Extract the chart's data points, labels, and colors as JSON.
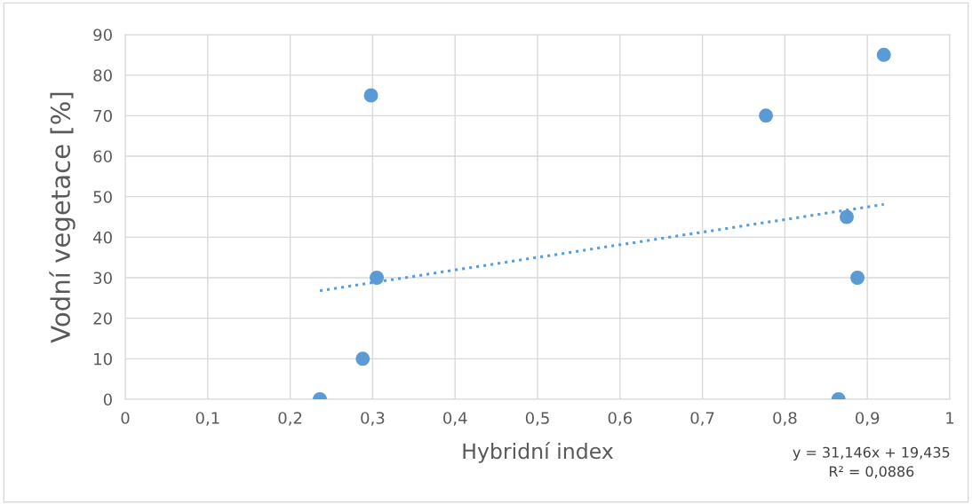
{
  "chart_data": {
    "type": "scatter",
    "xlabel": "Hybridní index",
    "ylabel": "Vodní vegetace [%]",
    "series": [
      {
        "color": "#5b9bd5",
        "x": [
          0.236,
          0.288,
          0.298,
          0.305,
          0.777,
          0.865,
          0.875,
          0.888,
          0.92
        ],
        "values": [
          0,
          10,
          75,
          30,
          70,
          0,
          45,
          30,
          85
        ],
        "marker": "circle"
      },
      {
        "type": "line",
        "color": "#5b9bd5",
        "x": [
          0.236,
          0.92
        ],
        "values": [
          26.8,
          48.1
        ],
        "line_style": "dotted",
        "marker": "none"
      }
    ],
    "xlim": [
      0,
      1
    ],
    "ylim": [
      0,
      90
    ],
    "xticks": [
      0,
      {
        "value": 0.1,
        "label": "0,1"
      },
      {
        "value": 0.2,
        "label": "0,2"
      },
      {
        "value": 0.3,
        "label": "0,3"
      },
      {
        "value": 0.4,
        "label": "0,4"
      },
      {
        "value": 0.5,
        "label": "0,5"
      },
      {
        "value": 0.6,
        "label": "0,6"
      },
      {
        "value": 0.7,
        "label": "0,7"
      },
      {
        "value": 0.8,
        "label": "0,8"
      },
      {
        "value": 0.9,
        "label": "0,9"
      },
      1
    ],
    "yticks": [
      0,
      10,
      20,
      30,
      40,
      50,
      60,
      70,
      80,
      90
    ],
    "grid": true,
    "annotations": [
      "y = 31,146x + 19,435\nR² = 0,0886"
    ]
  }
}
